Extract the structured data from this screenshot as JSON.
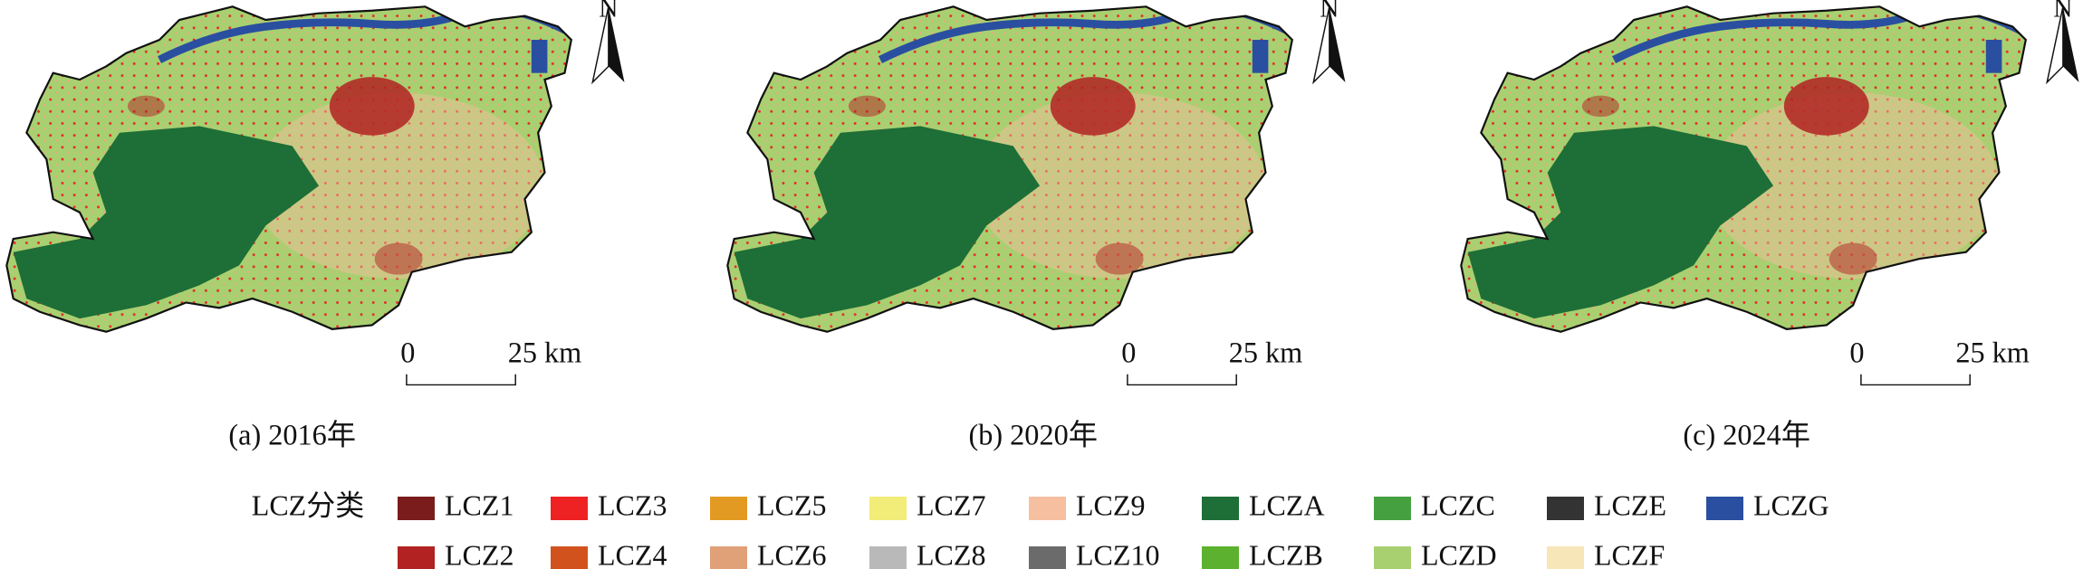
{
  "panels": [
    {
      "caption": "(a) 2016年"
    },
    {
      "caption": "(b) 2020年"
    },
    {
      "caption": "(c) 2024年"
    }
  ],
  "north": "N",
  "scale_bar": {
    "start": "0",
    "end": "25 km"
  },
  "legend": {
    "title": "LCZ分类",
    "items": [
      {
        "label": "LCZ1",
        "color": "#7b1c1c"
      },
      {
        "label": "LCZ2",
        "color": "#b22222"
      },
      {
        "label": "LCZ3",
        "color": "#ee2222"
      },
      {
        "label": "LCZ4",
        "color": "#d2521e"
      },
      {
        "label": "LCZ5",
        "color": "#e39a22"
      },
      {
        "label": "LCZ6",
        "color": "#e0a078"
      },
      {
        "label": "LCZ7",
        "color": "#f2ec78"
      },
      {
        "label": "LCZ8",
        "color": "#b9b9b9"
      },
      {
        "label": "LCZ9",
        "color": "#f6bfa0"
      },
      {
        "label": "LCZ10",
        "color": "#6b6b6b"
      },
      {
        "label": "LCZA",
        "color": "#1e6e37"
      },
      {
        "label": "LCZB",
        "color": "#5cb22e"
      },
      {
        "label": "LCZC",
        "color": "#45a040"
      },
      {
        "label": "LCZD",
        "color": "#a8d070"
      },
      {
        "label": "LCZE",
        "color": "#333333"
      },
      {
        "label": "LCZF",
        "color": "#f7e6b8"
      },
      {
        "label": "LCZG",
        "color": "#2a4fa0"
      }
    ]
  }
}
